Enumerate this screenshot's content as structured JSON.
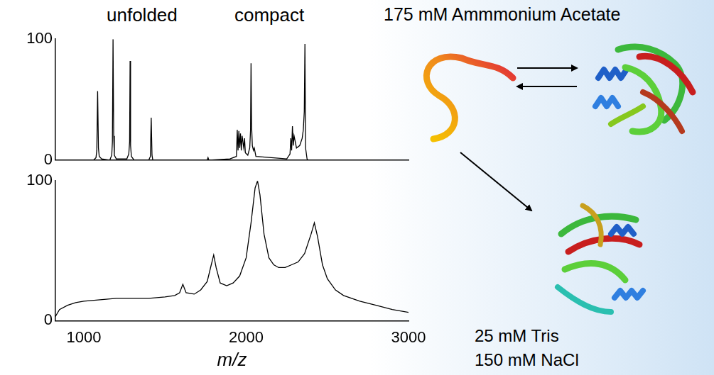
{
  "chart_data": [
    {
      "type": "line",
      "color": "#000000",
      "grid": false,
      "tick_labels": "y",
      "annotations": [
        "unfolded",
        "compact"
      ],
      "xlim": [
        825,
        3000
      ],
      "ylim": [
        0,
        100
      ],
      "yticks": [
        0,
        100
      ],
      "x": [
        825,
        1060,
        1075,
        1080,
        1085,
        1090,
        1095,
        1110,
        1160,
        1172,
        1176,
        1180,
        1184,
        1188,
        1200,
        1265,
        1277,
        1282,
        1285,
        1288,
        1293,
        1310,
        1400,
        1410,
        1415,
        1420,
        1425,
        1700,
        1760,
        1765,
        1770,
        1900,
        1940,
        1945,
        1950,
        1955,
        1960,
        1965,
        1970,
        1975,
        1985,
        1990,
        1995,
        2010,
        2022,
        2027,
        2030,
        2033,
        2038,
        2045,
        2050,
        2060,
        2250,
        2270,
        2275,
        2280,
        2285,
        2290,
        2295,
        2310,
        2330,
        2345,
        2352,
        2358,
        2362,
        2366,
        2375,
        2380,
        3000
      ],
      "values": [
        0,
        0,
        2,
        8,
        57,
        10,
        3,
        1,
        0,
        4,
        15,
        100,
        20,
        4,
        1,
        1,
        5,
        15,
        82,
        12,
        3,
        0,
        0,
        3,
        35,
        4,
        0,
        0,
        0,
        2,
        0,
        1,
        3,
        25,
        8,
        24,
        10,
        22,
        8,
        20,
        10,
        18,
        6,
        4,
        10,
        25,
        80,
        30,
        12,
        8,
        10,
        3,
        1,
        5,
        18,
        8,
        28,
        12,
        20,
        10,
        12,
        18,
        25,
        40,
        96,
        10,
        1,
        0,
        0
      ]
    },
    {
      "type": "line",
      "color": "#000000",
      "grid": false,
      "x_label": "m/z",
      "xlim": [
        825,
        3000
      ],
      "xticks": [
        1000,
        2000,
        3000
      ],
      "ylim": [
        0,
        100
      ],
      "yticks": [
        0,
        100
      ],
      "x": [
        825,
        850,
        900,
        950,
        1000,
        1100,
        1200,
        1300,
        1400,
        1500,
        1560,
        1590,
        1610,
        1630,
        1680,
        1720,
        1760,
        1785,
        1800,
        1815,
        1840,
        1880,
        1920,
        1960,
        2000,
        2030,
        2055,
        2070,
        2085,
        2110,
        2140,
        2170,
        2200,
        2240,
        2280,
        2320,
        2360,
        2400,
        2420,
        2440,
        2470,
        2500,
        2550,
        2600,
        2700,
        2800,
        2900,
        3000
      ],
      "values": [
        3,
        8,
        11,
        13,
        14,
        15,
        16,
        16,
        16,
        17,
        18,
        20,
        26,
        20,
        19,
        22,
        28,
        40,
        47,
        38,
        27,
        25,
        27,
        32,
        45,
        70,
        95,
        100,
        90,
        62,
        45,
        40,
        38,
        38,
        40,
        42,
        48,
        62,
        70,
        60,
        40,
        30,
        22,
        18,
        14,
        11,
        8,
        6
      ]
    }
  ],
  "schematic": {
    "condition_1": "175 mM Ammmonium Acetate",
    "condition_2": [
      "25 mM Tris",
      "150 mM NaCl"
    ]
  }
}
